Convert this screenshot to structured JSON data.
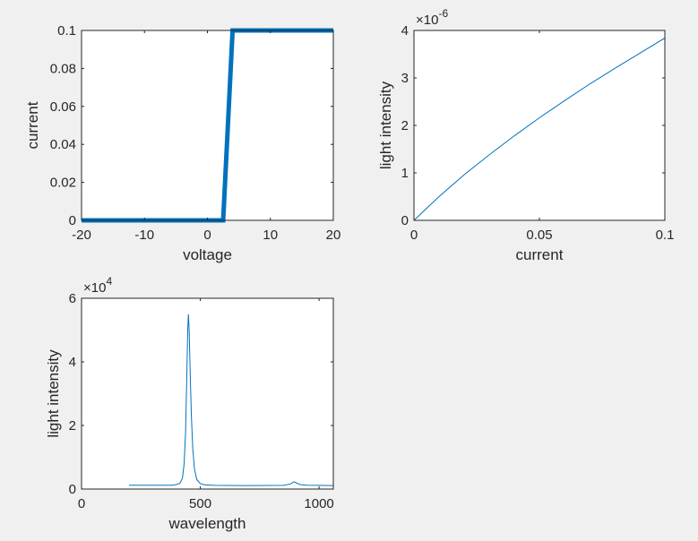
{
  "figure": {
    "background": "#f0f0f0",
    "axes_background": "#ffffff",
    "line_color": "#0072bd",
    "text_color": "#262626"
  },
  "chart_data": [
    {
      "type": "line",
      "xlabel": "voltage",
      "ylabel": "current",
      "xlim": [
        -20,
        20
      ],
      "ylim": [
        0,
        0.1
      ],
      "xticks": [
        -20,
        -10,
        0,
        10,
        20
      ],
      "xtick_labels": [
        "-20",
        "-10",
        "0",
        "10",
        "20"
      ],
      "yticks": [
        0,
        0.02,
        0.04,
        0.06,
        0.08,
        0.1
      ],
      "ytick_labels": [
        "0",
        "0.02",
        "0.04",
        "0.06",
        "0.08",
        "0.1"
      ],
      "exponent_label": "",
      "grid": false,
      "series": [
        {
          "color": "#0072bd",
          "line_width": "thick",
          "x": [
            -20,
            2.5,
            4,
            20
          ],
          "y": [
            0,
            0,
            0.1,
            0.1
          ]
        }
      ]
    },
    {
      "type": "line",
      "xlabel": "current",
      "ylabel": "light intensity",
      "xlim": [
        0,
        0.1
      ],
      "ylim": [
        0,
        4e-06
      ],
      "xticks": [
        0,
        0.05,
        0.1
      ],
      "xtick_labels": [
        "0",
        "0.05",
        "0.1"
      ],
      "yticks": [
        0,
        1e-06,
        2e-06,
        3e-06,
        4e-06
      ],
      "ytick_labels": [
        "0",
        "1",
        "2",
        "3",
        "4"
      ],
      "exponent_label": "×10",
      "exponent_power": "-6",
      "grid": false,
      "series": [
        {
          "color": "#0072bd",
          "line_width": "thin",
          "x": [
            0,
            0.01,
            0.02,
            0.03,
            0.04,
            0.05,
            0.06,
            0.07,
            0.08,
            0.09,
            0.1
          ],
          "y": [
            0,
            5e-07,
            9.6e-07,
            1.38e-06,
            1.78e-06,
            2.16e-06,
            2.52e-06,
            2.87e-06,
            3.2e-06,
            3.52e-06,
            3.84e-06
          ]
        }
      ]
    },
    {
      "type": "line",
      "xlabel": "wavelength",
      "ylabel": "light intensity",
      "xlim": [
        0,
        1060
      ],
      "ylim": [
        0,
        60000
      ],
      "xticks": [
        0,
        500,
        1000
      ],
      "xtick_labels": [
        "0",
        "500",
        "1000"
      ],
      "yticks": [
        0,
        20000,
        40000,
        60000
      ],
      "ytick_labels": [
        "0",
        "2",
        "4",
        "6"
      ],
      "exponent_label": "×10",
      "exponent_power": "4",
      "grid": false,
      "series": [
        {
          "color": "#0072bd",
          "line_width": "thin",
          "x": [
            200,
            380,
            400,
            415,
            425,
            432,
            438,
            443,
            447,
            450,
            453,
            457,
            462,
            468,
            475,
            485,
            500,
            520,
            560,
            700,
            850,
            880,
            895,
            905,
            920,
            950,
            1000,
            1060
          ],
          "y": [
            1200,
            1200,
            1400,
            1900,
            3500,
            8000,
            18000,
            35000,
            50000,
            55000,
            50000,
            38000,
            24000,
            13000,
            6500,
            3000,
            1700,
            1300,
            1150,
            1100,
            1150,
            1600,
            2300,
            1900,
            1400,
            1200,
            1150,
            1100
          ]
        }
      ]
    }
  ]
}
